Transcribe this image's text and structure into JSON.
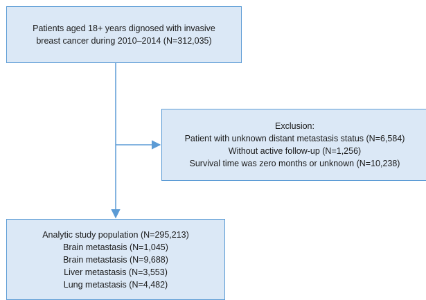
{
  "top_box": {
    "lines": [
      "Patients aged 18+ years dignosed with invasive",
      "breast cancer during 2010–2014 (N=312,035)"
    ]
  },
  "exclusion_box": {
    "lines": [
      "Exclusion:",
      "Patient with unknown distant metastasis status (N=6,584)",
      "Without active follow-up (N=1,256)",
      "Survival time was zero months or unknown (N=10,238)"
    ]
  },
  "bottom_box": {
    "lines": [
      "Analytic study population (N=295,213)",
      "Brain metastasis (N=1,045)",
      "Brain metastasis (N=9,688)",
      "Liver metastasis (N=3,553)",
      "Lung metastasis (N=4,482)"
    ]
  },
  "colors": {
    "box_fill": "#dbe8f6",
    "box_border": "#5b9bd5",
    "arrow": "#5b9bd5"
  }
}
